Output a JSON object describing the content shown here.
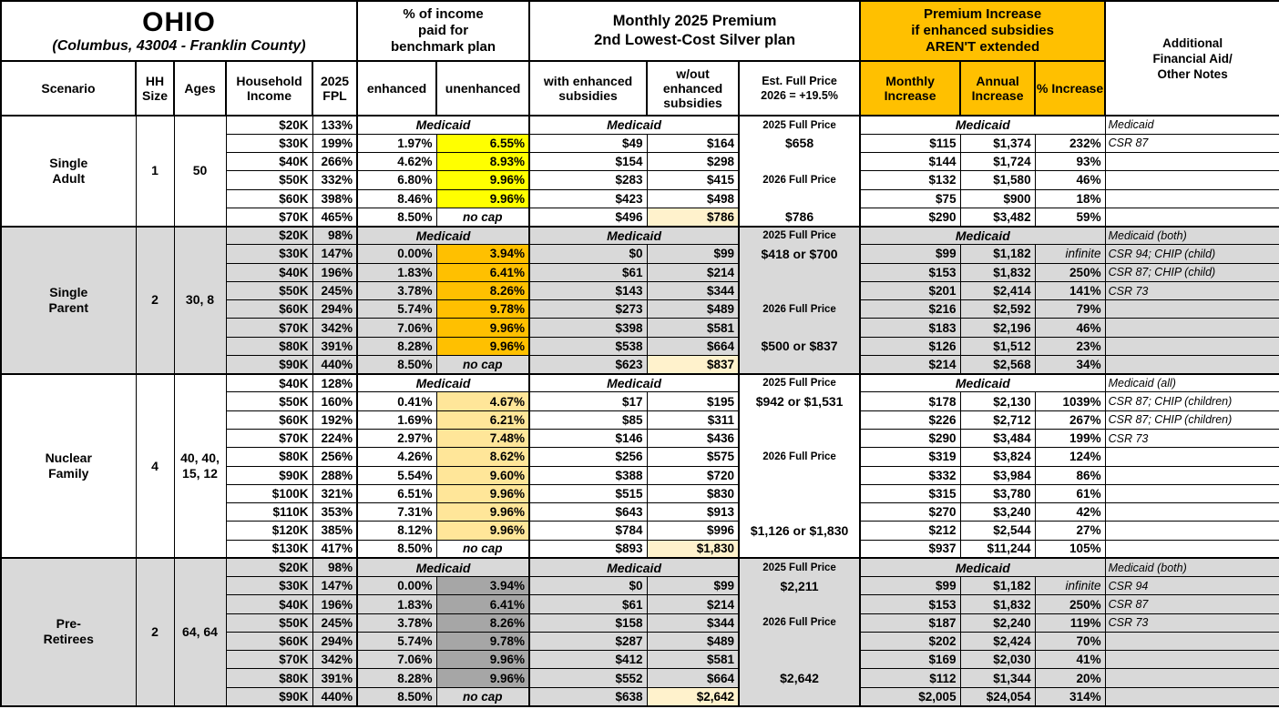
{
  "header": {
    "state": "OHIO",
    "location": "(Columbus, 43004 - Franklin County)",
    "group_pct_income": [
      "% of income",
      "paid for",
      "benchmark plan"
    ],
    "group_premium": [
      "Monthly 2025 Premium",
      "2nd Lowest-Cost Silver plan"
    ],
    "group_increase": [
      "Premium Increase",
      "if enhanced subsidies",
      "AREN'T extended"
    ],
    "col_notes": [
      "Additional",
      "Financial Aid/",
      "Other Notes"
    ],
    "col_scenario": "Scenario",
    "col_hh_size": "HH Size",
    "col_ages": "Ages",
    "col_income": "Household Income",
    "col_fpl": "2025 FPL",
    "col_enhanced": "enhanced",
    "col_unenhanced": "unenhanced",
    "col_with": "with enhanced subsidies",
    "col_wout": "w/out enhanced subsidies",
    "col_est": [
      "Est. Full Price",
      "2026 = +19.5%"
    ],
    "col_monthly": "Monthly Increase",
    "col_annual": "Annual Increase",
    "col_pct": "% Increase"
  },
  "palette": {
    "orange_header": "#FFC000",
    "yellow_highlight": "#FFFF00",
    "orange_highlight": "#FFC000",
    "tan_highlight": "#FFE699",
    "dark_gray_highlight": "#A6A6A6",
    "gray_block": "#D9D9D9",
    "white_block": "#FFFFFF",
    "cream_highlight": "#FFF2CC"
  },
  "blocks": [
    {
      "scenario": [
        "Single",
        "Adult"
      ],
      "hh_size": "1",
      "ages": [
        "50"
      ],
      "bg": "#FFFFFF",
      "highlight": "#FFFF00",
      "rows": [
        {
          "income": "$20K",
          "fpl": "133%",
          "medicaid": true,
          "est": "2025 Full Price",
          "note": "Medicaid"
        },
        {
          "income": "$30K",
          "fpl": "199%",
          "enh": "1.97%",
          "unenh": "6.55%",
          "with_sub": "$49",
          "wout_sub": "$164",
          "est": "$658",
          "monthly": "$115",
          "annual": "$1,374",
          "pct": "232%",
          "note": "CSR 87"
        },
        {
          "income": "$40K",
          "fpl": "266%",
          "enh": "4.62%",
          "unenh": "8.93%",
          "with_sub": "$154",
          "wout_sub": "$298",
          "est": "",
          "monthly": "$144",
          "annual": "$1,724",
          "pct": "93%",
          "note": ""
        },
        {
          "income": "$50K",
          "fpl": "332%",
          "enh": "6.80%",
          "unenh": "9.96%",
          "with_sub": "$283",
          "wout_sub": "$415",
          "est": "2026 Full Price",
          "monthly": "$132",
          "annual": "$1,580",
          "pct": "46%",
          "note": ""
        },
        {
          "income": "$60K",
          "fpl": "398%",
          "enh": "8.46%",
          "unenh": "9.96%",
          "with_sub": "$423",
          "wout_sub": "$498",
          "est": "",
          "monthly": "$75",
          "annual": "$900",
          "pct": "18%",
          "note": ""
        },
        {
          "income": "$70K",
          "fpl": "465%",
          "enh": "8.50%",
          "unenh": "no cap",
          "no_cap": true,
          "with_sub": "$496",
          "wout_sub": "$786",
          "wout_highlight": true,
          "est": "$786",
          "monthly": "$290",
          "annual": "$3,482",
          "pct": "59%",
          "note": ""
        }
      ]
    },
    {
      "scenario": [
        "Single",
        "Parent"
      ],
      "hh_size": "2",
      "ages": [
        "30, 8"
      ],
      "bg": "#D9D9D9",
      "highlight": "#FFC000",
      "rows": [
        {
          "income": "$20K",
          "fpl": "98%",
          "medicaid": true,
          "est": "2025 Full Price",
          "note": "Medicaid (both)"
        },
        {
          "income": "$30K",
          "fpl": "147%",
          "enh": "0.00%",
          "unenh": "3.94%",
          "with_sub": "$0",
          "wout_sub": "$99",
          "est": "$418 or $700",
          "monthly": "$99",
          "annual": "$1,182",
          "pct": "infinite",
          "infinite": true,
          "note": "CSR 94; CHIP (child)"
        },
        {
          "income": "$40K",
          "fpl": "196%",
          "enh": "1.83%",
          "unenh": "6.41%",
          "with_sub": "$61",
          "wout_sub": "$214",
          "est": "",
          "monthly": "$153",
          "annual": "$1,832",
          "pct": "250%",
          "note": "CSR 87; CHIP (child)"
        },
        {
          "income": "$50K",
          "fpl": "245%",
          "enh": "3.78%",
          "unenh": "8.26%",
          "with_sub": "$143",
          "wout_sub": "$344",
          "est": "",
          "monthly": "$201",
          "annual": "$2,414",
          "pct": "141%",
          "note": "CSR 73"
        },
        {
          "income": "$60K",
          "fpl": "294%",
          "enh": "5.74%",
          "unenh": "9.78%",
          "with_sub": "$273",
          "wout_sub": "$489",
          "est": "2026 Full Price",
          "monthly": "$216",
          "annual": "$2,592",
          "pct": "79%",
          "note": ""
        },
        {
          "income": "$70K",
          "fpl": "342%",
          "enh": "7.06%",
          "unenh": "9.96%",
          "with_sub": "$398",
          "wout_sub": "$581",
          "est": "",
          "monthly": "$183",
          "annual": "$2,196",
          "pct": "46%",
          "note": ""
        },
        {
          "income": "$80K",
          "fpl": "391%",
          "enh": "8.28%",
          "unenh": "9.96%",
          "with_sub": "$538",
          "wout_sub": "$664",
          "est": "$500 or $837",
          "monthly": "$126",
          "annual": "$1,512",
          "pct": "23%",
          "note": ""
        },
        {
          "income": "$90K",
          "fpl": "440%",
          "enh": "8.50%",
          "unenh": "no cap",
          "no_cap": true,
          "with_sub": "$623",
          "wout_sub": "$837",
          "wout_highlight": true,
          "est": "",
          "monthly": "$214",
          "annual": "$2,568",
          "pct": "34%",
          "note": ""
        }
      ]
    },
    {
      "scenario": [
        "Nuclear",
        "Family"
      ],
      "hh_size": "4",
      "ages": [
        "40, 40,",
        "15, 12"
      ],
      "bg": "#FFFFFF",
      "highlight": "#FFE699",
      "rows": [
        {
          "income": "$40K",
          "fpl": "128%",
          "medicaid": true,
          "est": "2025 Full Price",
          "note": "Medicaid (all)"
        },
        {
          "income": "$50K",
          "fpl": "160%",
          "enh": "0.41%",
          "unenh": "4.67%",
          "with_sub": "$17",
          "wout_sub": "$195",
          "est": "$942 or $1,531",
          "monthly": "$178",
          "annual": "$2,130",
          "pct": "1039%",
          "note": "CSR 87; CHIP (children)"
        },
        {
          "income": "$60K",
          "fpl": "192%",
          "enh": "1.69%",
          "unenh": "6.21%",
          "with_sub": "$85",
          "wout_sub": "$311",
          "est": "",
          "monthly": "$226",
          "annual": "$2,712",
          "pct": "267%",
          "note": "CSR 87; CHIP (children)"
        },
        {
          "income": "$70K",
          "fpl": "224%",
          "enh": "2.97%",
          "unenh": "7.48%",
          "with_sub": "$146",
          "wout_sub": "$436",
          "est": "",
          "monthly": "$290",
          "annual": "$3,484",
          "pct": "199%",
          "note": "CSR 73"
        },
        {
          "income": "$80K",
          "fpl": "256%",
          "enh": "4.26%",
          "unenh": "8.62%",
          "with_sub": "$256",
          "wout_sub": "$575",
          "est": "2026 Full Price",
          "monthly": "$319",
          "annual": "$3,824",
          "pct": "124%",
          "note": ""
        },
        {
          "income": "$90K",
          "fpl": "288%",
          "enh": "5.54%",
          "unenh": "9.60%",
          "with_sub": "$388",
          "wout_sub": "$720",
          "est": "",
          "monthly": "$332",
          "annual": "$3,984",
          "pct": "86%",
          "note": ""
        },
        {
          "income": "$100K",
          "fpl": "321%",
          "enh": "6.51%",
          "unenh": "9.96%",
          "with_sub": "$515",
          "wout_sub": "$830",
          "est": "",
          "monthly": "$315",
          "annual": "$3,780",
          "pct": "61%",
          "note": ""
        },
        {
          "income": "$110K",
          "fpl": "353%",
          "enh": "7.31%",
          "unenh": "9.96%",
          "with_sub": "$643",
          "wout_sub": "$913",
          "est": "",
          "monthly": "$270",
          "annual": "$3,240",
          "pct": "42%",
          "note": ""
        },
        {
          "income": "$120K",
          "fpl": "385%",
          "enh": "8.12%",
          "unenh": "9.96%",
          "with_sub": "$784",
          "wout_sub": "$996",
          "est": "$1,126 or $1,830",
          "monthly": "$212",
          "annual": "$2,544",
          "pct": "27%",
          "note": ""
        },
        {
          "income": "$130K",
          "fpl": "417%",
          "enh": "8.50%",
          "unenh": "no cap",
          "no_cap": true,
          "with_sub": "$893",
          "wout_sub": "$1,830",
          "wout_highlight": true,
          "est": "",
          "monthly": "$937",
          "annual": "$11,244",
          "pct": "105%",
          "note": ""
        }
      ]
    },
    {
      "scenario": [
        "Pre-",
        "Retirees"
      ],
      "hh_size": "2",
      "ages": [
        "64, 64"
      ],
      "bg": "#D9D9D9",
      "highlight": "#A6A6A6",
      "rows": [
        {
          "income": "$20K",
          "fpl": "98%",
          "medicaid": true,
          "est": "2025 Full Price",
          "note": "Medicaid (both)"
        },
        {
          "income": "$30K",
          "fpl": "147%",
          "enh": "0.00%",
          "unenh": "3.94%",
          "with_sub": "$0",
          "wout_sub": "$99",
          "est": "$2,211",
          "monthly": "$99",
          "annual": "$1,182",
          "pct": "infinite",
          "infinite": true,
          "note": "CSR 94"
        },
        {
          "income": "$40K",
          "fpl": "196%",
          "enh": "1.83%",
          "unenh": "6.41%",
          "with_sub": "$61",
          "wout_sub": "$214",
          "est": "",
          "monthly": "$153",
          "annual": "$1,832",
          "pct": "250%",
          "note": "CSR 87"
        },
        {
          "income": "$50K",
          "fpl": "245%",
          "enh": "3.78%",
          "unenh": "8.26%",
          "with_sub": "$158",
          "wout_sub": "$344",
          "est": "2026 Full Price",
          "monthly": "$187",
          "annual": "$2,240",
          "pct": "119%",
          "note": "CSR 73"
        },
        {
          "income": "$60K",
          "fpl": "294%",
          "enh": "5.74%",
          "unenh": "9.78%",
          "with_sub": "$287",
          "wout_sub": "$489",
          "est": "",
          "monthly": "$202",
          "annual": "$2,424",
          "pct": "70%",
          "note": ""
        },
        {
          "income": "$70K",
          "fpl": "342%",
          "enh": "7.06%",
          "unenh": "9.96%",
          "with_sub": "$412",
          "wout_sub": "$581",
          "est": "",
          "monthly": "$169",
          "annual": "$2,030",
          "pct": "41%",
          "note": ""
        },
        {
          "income": "$80K",
          "fpl": "391%",
          "enh": "8.28%",
          "unenh": "9.96%",
          "with_sub": "$552",
          "wout_sub": "$664",
          "est": "$2,642",
          "monthly": "$112",
          "annual": "$1,344",
          "pct": "20%",
          "note": ""
        },
        {
          "income": "$90K",
          "fpl": "440%",
          "enh": "8.50%",
          "unenh": "no cap",
          "no_cap": true,
          "with_sub": "$638",
          "wout_sub": "$2,642",
          "wout_highlight": true,
          "est": "",
          "monthly": "$2,005",
          "annual": "$24,054",
          "pct": "314%",
          "note": ""
        }
      ]
    }
  ]
}
